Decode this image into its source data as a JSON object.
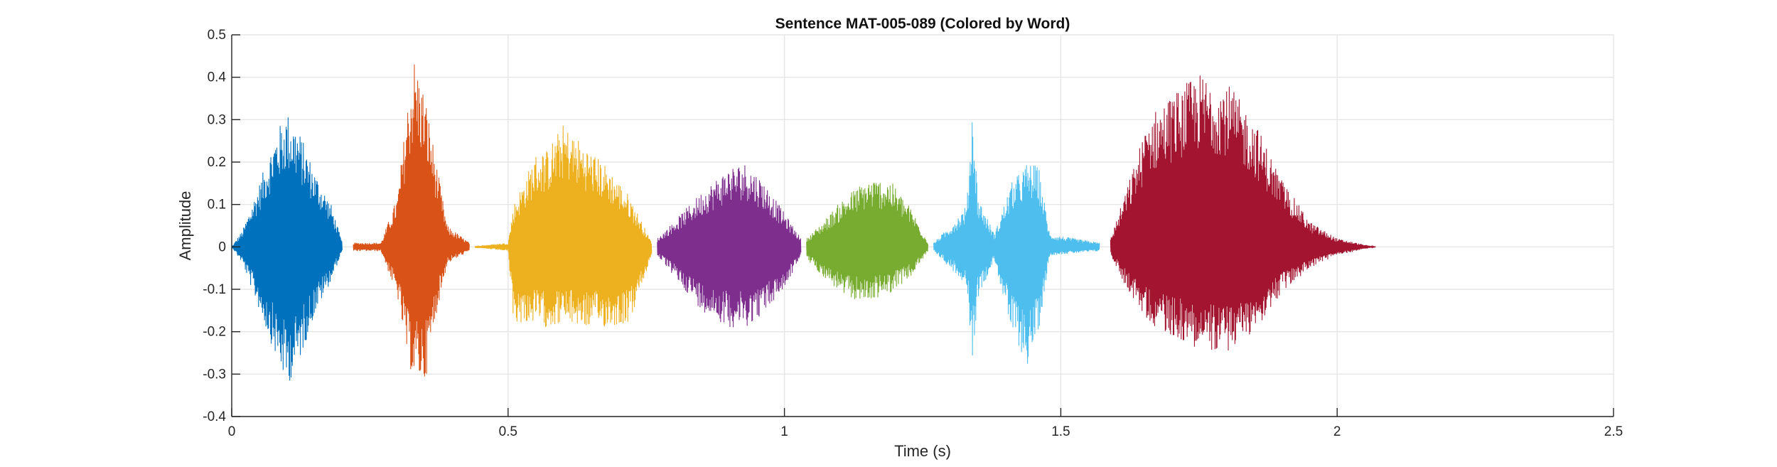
{
  "chart_data": {
    "type": "line",
    "title": "Sentence MAT-005-089 (Colored by Word)",
    "xlabel": "Time (s)",
    "ylabel": "Amplitude",
    "xlim": [
      0,
      2.5
    ],
    "ylim": [
      -0.4,
      0.5
    ],
    "xticks": [
      0,
      0.5,
      1,
      1.5,
      2,
      2.5
    ],
    "xtick_labels": [
      "0",
      "0.5",
      "1",
      "1.5",
      "2",
      "2.5"
    ],
    "yticks": [
      -0.4,
      -0.3,
      -0.2,
      -0.1,
      0,
      0.1,
      0.2,
      0.3,
      0.4,
      0.5
    ],
    "ytick_labels": [
      "-0.4",
      "-0.3",
      "-0.2",
      "-0.1",
      "0",
      "0.1",
      "0.2",
      "0.3",
      "0.4",
      "0.5"
    ],
    "grid": true,
    "series": [
      {
        "color": "#0072BD",
        "segments": [
          {
            "start": 0.0,
            "end": 0.2,
            "envelope": [
              [
                0.0,
                0.0,
                0.0
              ],
              [
                0.02,
                0.04,
                -0.04
              ],
              [
                0.05,
                0.15,
                -0.15
              ],
              [
                0.08,
                0.27,
                -0.26
              ],
              [
                0.1,
                0.32,
                -0.33
              ],
              [
                0.12,
                0.28,
                -0.28
              ],
              [
                0.15,
                0.18,
                -0.16
              ],
              [
                0.18,
                0.1,
                -0.08
              ],
              [
                0.2,
                0.01,
                -0.01
              ]
            ]
          }
        ]
      },
      {
        "color": "#D95319",
        "segments": [
          {
            "start": 0.22,
            "end": 0.43,
            "envelope": [
              [
                0.22,
                0.01,
                -0.01
              ],
              [
                0.27,
                0.01,
                -0.01
              ],
              [
                0.3,
                0.12,
                -0.12
              ],
              [
                0.32,
                0.36,
                -0.28
              ],
              [
                0.33,
                0.45,
                -0.31
              ],
              [
                0.35,
                0.36,
                -0.32
              ],
              [
                0.37,
                0.2,
                -0.16
              ],
              [
                0.39,
                0.05,
                -0.04
              ],
              [
                0.43,
                0.01,
                -0.01
              ]
            ]
          }
        ]
      },
      {
        "color": "#EDB120",
        "segments": [
          {
            "start": 0.44,
            "end": 0.76,
            "envelope": [
              [
                0.44,
                0.002,
                -0.002
              ],
              [
                0.5,
                0.01,
                -0.01
              ],
              [
                0.51,
                0.1,
                -0.18
              ],
              [
                0.55,
                0.22,
                -0.18
              ],
              [
                0.57,
                0.23,
                -0.19
              ],
              [
                0.6,
                0.29,
                -0.18
              ],
              [
                0.64,
                0.24,
                -0.19
              ],
              [
                0.68,
                0.19,
                -0.19
              ],
              [
                0.72,
                0.12,
                -0.18
              ],
              [
                0.76,
                0.01,
                -0.02
              ]
            ]
          }
        ]
      },
      {
        "color": "#7E2F8E",
        "segments": [
          {
            "start": 0.77,
            "end": 1.03,
            "envelope": [
              [
                0.77,
                0.02,
                -0.02
              ],
              [
                0.8,
                0.06,
                -0.07
              ],
              [
                0.85,
                0.13,
                -0.15
              ],
              [
                0.9,
                0.19,
                -0.19
              ],
              [
                0.93,
                0.2,
                -0.19
              ],
              [
                0.96,
                0.16,
                -0.16
              ],
              [
                1.0,
                0.08,
                -0.1
              ],
              [
                1.03,
                0.02,
                -0.02
              ]
            ]
          }
        ]
      },
      {
        "color": "#77AC30",
        "segments": [
          {
            "start": 1.04,
            "end": 1.26,
            "envelope": [
              [
                1.04,
                0.02,
                -0.03
              ],
              [
                1.07,
                0.06,
                -0.07
              ],
              [
                1.11,
                0.12,
                -0.12
              ],
              [
                1.15,
                0.16,
                -0.13
              ],
              [
                1.19,
                0.16,
                -0.11
              ],
              [
                1.23,
                0.09,
                -0.07
              ],
              [
                1.26,
                0.01,
                -0.01
              ]
            ]
          }
        ]
      },
      {
        "color": "#4DBEEE",
        "segments": [
          {
            "start": 1.27,
            "end": 1.57,
            "envelope": [
              [
                1.27,
                0.01,
                -0.01
              ],
              [
                1.3,
                0.05,
                -0.05
              ],
              [
                1.33,
                0.1,
                -0.09
              ],
              [
                1.34,
                0.34,
                -0.27
              ],
              [
                1.35,
                0.12,
                -0.12
              ],
              [
                1.38,
                0.03,
                -0.03
              ],
              [
                1.41,
                0.15,
                -0.2
              ],
              [
                1.44,
                0.2,
                -0.28
              ],
              [
                1.46,
                0.19,
                -0.2
              ],
              [
                1.48,
                0.03,
                -0.02
              ],
              [
                1.57,
                0.01,
                -0.01
              ]
            ]
          }
        ]
      },
      {
        "color": "#A2142F",
        "segments": [
          {
            "start": 1.59,
            "end": 2.07,
            "envelope": [
              [
                1.59,
                0.02,
                -0.02
              ],
              [
                1.62,
                0.14,
                -0.1
              ],
              [
                1.66,
                0.31,
                -0.18
              ],
              [
                1.7,
                0.36,
                -0.21
              ],
              [
                1.75,
                0.41,
                -0.24
              ],
              [
                1.8,
                0.39,
                -0.25
              ],
              [
                1.85,
                0.3,
                -0.2
              ],
              [
                1.9,
                0.16,
                -0.11
              ],
              [
                1.95,
                0.06,
                -0.05
              ],
              [
                2.0,
                0.02,
                -0.02
              ],
              [
                2.05,
                0.005,
                -0.005
              ],
              [
                2.07,
                0.0,
                0.0
              ]
            ]
          }
        ]
      }
    ]
  }
}
